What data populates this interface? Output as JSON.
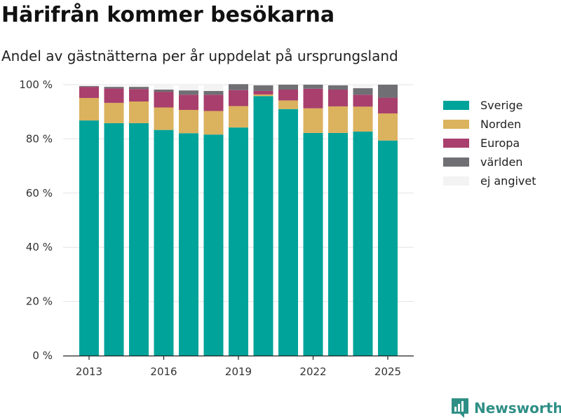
{
  "title": "Härifrån kommer besökarna",
  "subtitle": "Andel av gästnätterna per år uppdelat på ursprungsland",
  "brand": {
    "name": "Newsworthy",
    "icon": "newsworthy-logo-icon",
    "color": "#2f8f86"
  },
  "chart_data": {
    "type": "bar",
    "stacked": true,
    "x": [
      2013,
      2014,
      2015,
      2016,
      2017,
      2018,
      2019,
      2020,
      2021,
      2022,
      2023,
      2024,
      2025
    ],
    "x_ticks": [
      2013,
      2016,
      2019,
      2022,
      2025
    ],
    "x_tick_labels": [
      "2013",
      "2016",
      "2019",
      "2022",
      "2025"
    ],
    "y_ticks": [
      0,
      20,
      40,
      60,
      80,
      100
    ],
    "y_tick_labels": [
      "0 %",
      "20 %",
      "40 %",
      "60 %",
      "80 %",
      "100 %"
    ],
    "ylim": [
      0,
      100
    ],
    "grid": true,
    "legend_position": "right",
    "series": [
      {
        "name": "Sverige",
        "color": "#00a39a",
        "values": [
          86.8,
          85.8,
          85.8,
          83.3,
          82.1,
          81.6,
          84.2,
          95.8,
          91.0,
          82.2,
          82.2,
          82.7,
          79.4
        ]
      },
      {
        "name": "Norden",
        "color": "#dbb25e",
        "values": [
          8.3,
          7.5,
          8.0,
          8.3,
          8.6,
          8.7,
          7.9,
          0.6,
          3.2,
          9.1,
          9.8,
          9.2,
          10.0
        ]
      },
      {
        "name": "Europa",
        "color": "#a83f6c",
        "values": [
          4.1,
          5.3,
          4.6,
          5.8,
          5.6,
          6.0,
          5.9,
          1.3,
          4.0,
          7.2,
          6.2,
          4.4,
          5.8
        ]
      },
      {
        "name": "världen",
        "color": "#6f6f74",
        "values": [
          0.3,
          0.6,
          0.8,
          0.8,
          1.6,
          1.4,
          2.2,
          2.1,
          1.8,
          1.5,
          1.6,
          2.4,
          4.8
        ]
      },
      {
        "name": "ej angivet",
        "color": "#f3f3f3",
        "values": [
          0.5,
          0.8,
          0.8,
          1.8,
          2.1,
          2.3,
          0.0,
          0.2,
          0.0,
          0.0,
          0.2,
          1.3,
          0.0
        ]
      }
    ]
  }
}
